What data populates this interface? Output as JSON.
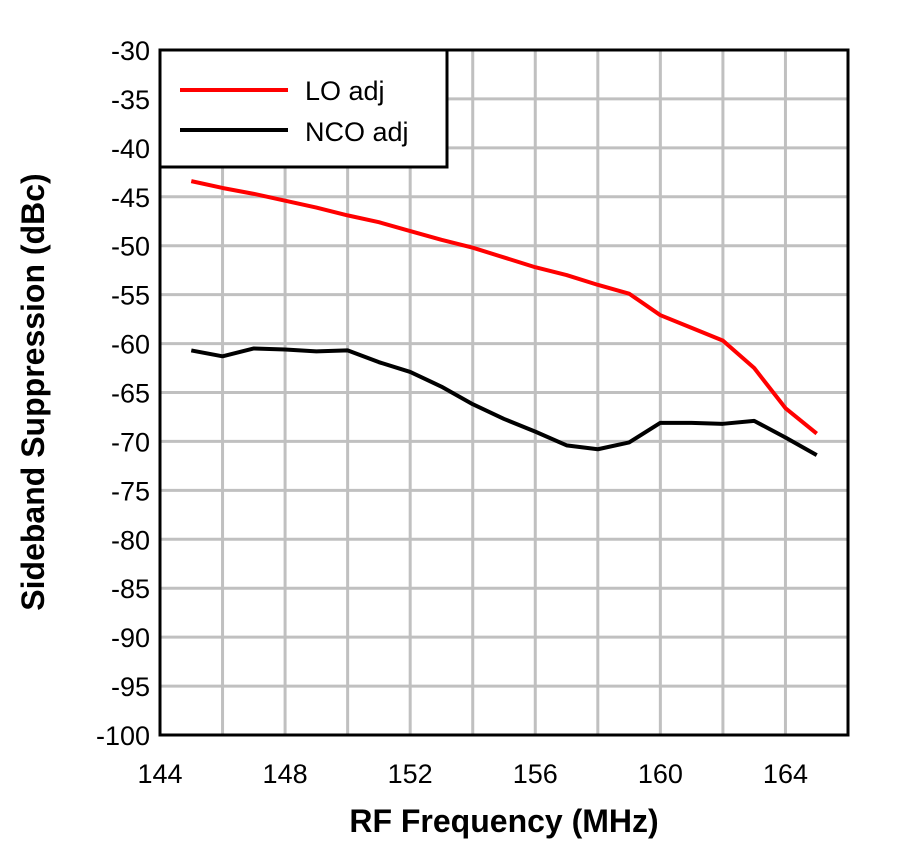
{
  "chart_data": {
    "type": "line",
    "title": "",
    "xlabel": "RF Frequency (MHz)",
    "ylabel": "Sideband Suppression (dBc)",
    "xlim": [
      144,
      166
    ],
    "ylim": [
      -100,
      -30
    ],
    "xticks": [
      144,
      148,
      152,
      156,
      160,
      164
    ],
    "yticks": [
      -30,
      -35,
      -40,
      -45,
      -50,
      -55,
      -60,
      -65,
      -70,
      -75,
      -80,
      -85,
      -90,
      -95,
      -100
    ],
    "grid": true,
    "legend_position": "top-left",
    "x": [
      145,
      146,
      147,
      148,
      149,
      150,
      151,
      152,
      153,
      154,
      155,
      156,
      157,
      158,
      159,
      160,
      161,
      162,
      163,
      164,
      165
    ],
    "series": [
      {
        "name": "LO adj",
        "color": "#ff0000",
        "values": [
          -43.4,
          -44.1,
          -44.7,
          -45.4,
          -46.1,
          -46.9,
          -47.6,
          -48.5,
          -49.4,
          -50.2,
          -51.2,
          -52.2,
          -53.0,
          -54.0,
          -54.9,
          -57.1,
          -58.4,
          -59.7,
          -62.5,
          -66.6,
          -69.2
        ]
      },
      {
        "name": "NCO adj",
        "color": "#000000",
        "values": [
          -60.7,
          -61.3,
          -60.5,
          -60.6,
          -60.8,
          -60.7,
          -61.9,
          -62.9,
          -64.4,
          -66.2,
          -67.7,
          -69.0,
          -70.4,
          -70.8,
          -70.1,
          -68.1,
          -68.1,
          -68.2,
          -67.9,
          -69.6,
          -71.4
        ]
      }
    ]
  }
}
